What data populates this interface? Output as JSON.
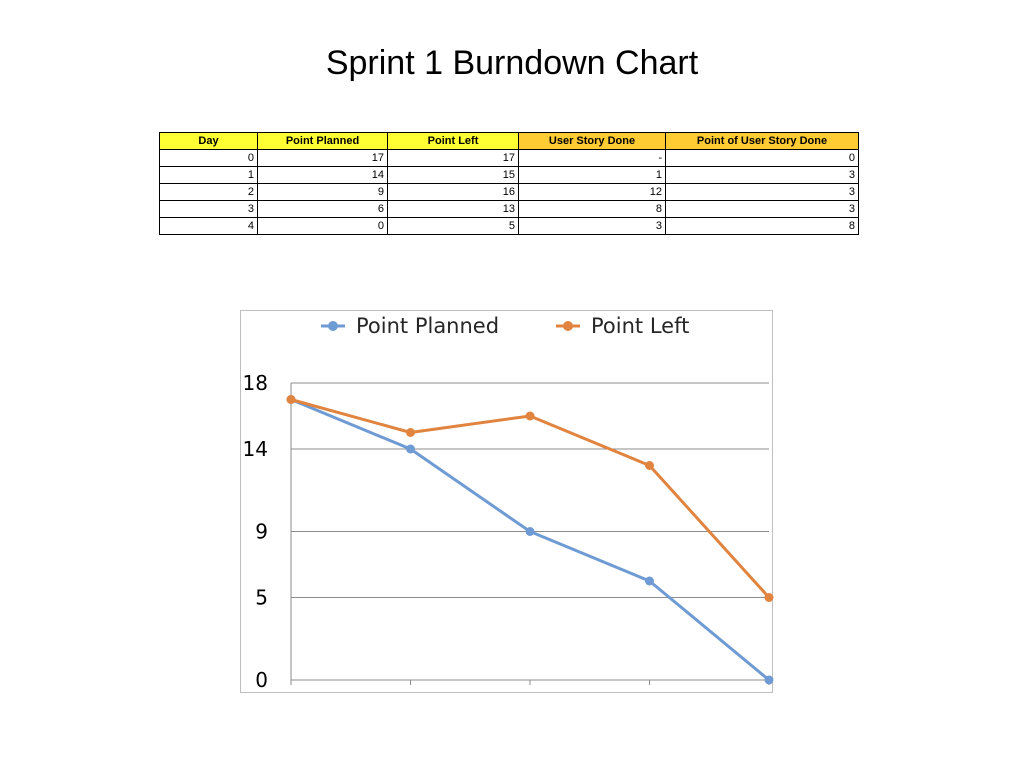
{
  "title": "Sprint 1 Burndown Chart",
  "table": {
    "headers": [
      "Day",
      "Point Planned",
      "Point Left",
      "User Story Done",
      "Point of User Story Done"
    ],
    "header_colors": [
      "#ffff33",
      "#ffff33",
      "#ffff33",
      "#ffcc33",
      "#ffcc33"
    ],
    "rows": [
      [
        "0",
        "17",
        "17",
        "-",
        "0"
      ],
      [
        "1",
        "14",
        "15",
        "1",
        "3"
      ],
      [
        "2",
        "9",
        "16",
        "12",
        "3"
      ],
      [
        "3",
        "6",
        "13",
        "8",
        "3"
      ],
      [
        "4",
        "0",
        "5",
        "3",
        "8"
      ]
    ]
  },
  "chart_data": {
    "type": "line",
    "title": "",
    "xlabel": "",
    "ylabel": "",
    "x": [
      0,
      1,
      2,
      3,
      4
    ],
    "ylim": [
      0,
      18
    ],
    "y_ticks": [
      0,
      5,
      9,
      14,
      18
    ],
    "grid": true,
    "legend_position": "top",
    "series": [
      {
        "name": "Point Planned",
        "color": "#6f9bd4",
        "values": [
          17,
          14,
          9,
          6,
          0
        ]
      },
      {
        "name": "Point Left",
        "color": "#e0843f",
        "values": [
          17,
          15,
          16,
          13,
          5
        ]
      }
    ]
  }
}
